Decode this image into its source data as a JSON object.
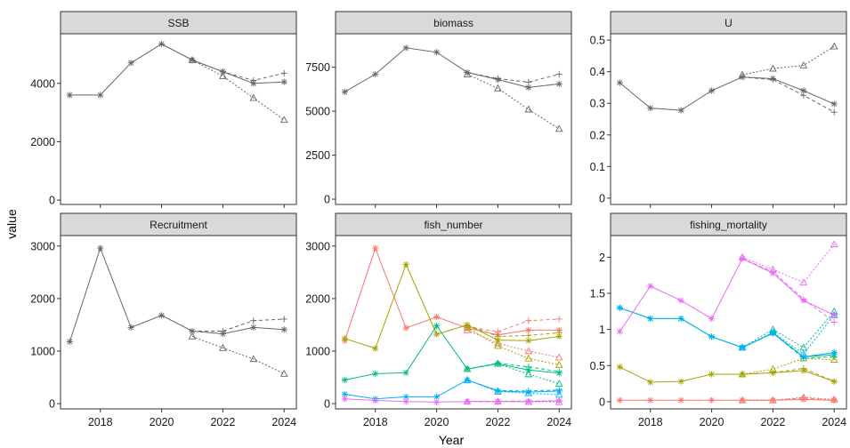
{
  "chart_data": {
    "type": "line",
    "xlabel": "Year",
    "ylabel": "value",
    "x_ticks": [
      2018,
      2020,
      2022,
      2024
    ],
    "xlim": [
      2016.7,
      2024.4
    ],
    "line_styles": [
      "solid",
      "dashed",
      "dotted"
    ],
    "markers": [
      "asterisk",
      "plus",
      "triangle"
    ],
    "panels": [
      {
        "title": "SSB",
        "ylim": [
          -150,
          5700
        ],
        "y_ticks": [
          0,
          2000,
          4000
        ],
        "colors": [
          "#666666"
        ],
        "groups": [
          {
            "variants": [
              {
                "x": [
                  2017,
                  2018,
                  2019,
                  2020,
                  2021,
                  2022,
                  2023,
                  2024
                ],
                "y": [
                  3600,
                  3600,
                  4700,
                  5350,
                  4800,
                  4400,
                  4000,
                  4050
                ]
              },
              {
                "x": [
                  2021,
                  2022,
                  2023,
                  2024
                ],
                "y": [
                  4800,
                  4400,
                  4100,
                  4350
                ]
              },
              {
                "x": [
                  2021,
                  2022,
                  2023,
                  2024
                ],
                "y": [
                  4800,
                  4250,
                  3500,
                  2750
                ]
              }
            ]
          }
        ]
      },
      {
        "title": "biomass",
        "ylim": [
          -300,
          9400
        ],
        "y_ticks": [
          0,
          2500,
          5000,
          7500
        ],
        "colors": [
          "#666666"
        ],
        "groups": [
          {
            "variants": [
              {
                "x": [
                  2017,
                  2018,
                  2019,
                  2020,
                  2021,
                  2022,
                  2023,
                  2024
                ],
                "y": [
                  6100,
                  7100,
                  8600,
                  8350,
                  7200,
                  6800,
                  6350,
                  6550
                ]
              },
              {
                "x": [
                  2021,
                  2022,
                  2023,
                  2024
                ],
                "y": [
                  7200,
                  6850,
                  6650,
                  7100
                ]
              },
              {
                "x": [
                  2021,
                  2022,
                  2023,
                  2024
                ],
                "y": [
                  7100,
                  6300,
                  5100,
                  4000
                ]
              }
            ]
          }
        ]
      },
      {
        "title": "U",
        "ylim": [
          -0.02,
          0.52
        ],
        "y_ticks": [
          0.0,
          0.1,
          0.2,
          0.3,
          0.4,
          0.5
        ],
        "colors": [
          "#666666"
        ],
        "groups": [
          {
            "variants": [
              {
                "x": [
                  2017,
                  2018,
                  2019,
                  2020,
                  2021,
                  2022,
                  2023,
                  2024
                ],
                "y": [
                  0.365,
                  0.285,
                  0.278,
                  0.34,
                  0.383,
                  0.378,
                  0.34,
                  0.298
                ]
              },
              {
                "x": [
                  2021,
                  2022,
                  2023,
                  2024
                ],
                "y": [
                  0.383,
                  0.375,
                  0.325,
                  0.272
                ]
              },
              {
                "x": [
                  2021,
                  2022,
                  2023,
                  2024
                ],
                "y": [
                  0.39,
                  0.41,
                  0.42,
                  0.48
                ]
              }
            ]
          }
        ]
      },
      {
        "title": "Recruitment",
        "ylim": [
          -100,
          3200
        ],
        "y_ticks": [
          0,
          1000,
          2000,
          3000
        ],
        "colors": [
          "#666666"
        ],
        "groups": [
          {
            "variants": [
              {
                "x": [
                  2017,
                  2018,
                  2019,
                  2020,
                  2021,
                  2022,
                  2023,
                  2024
                ],
                "y": [
                  1180,
                  2960,
                  1450,
                  1680,
                  1380,
                  1330,
                  1450,
                  1410
                ]
              },
              {
                "x": [
                  2021,
                  2022,
                  2023,
                  2024
                ],
                "y": [
                  1380,
                  1380,
                  1580,
                  1610
                ]
              },
              {
                "x": [
                  2021,
                  2022,
                  2023,
                  2024
                ],
                "y": [
                  1280,
                  1060,
                  850,
                  570
                ]
              }
            ]
          }
        ]
      },
      {
        "title": "fish_number",
        "ylim": [
          -100,
          3200
        ],
        "y_ticks": [
          0,
          1000,
          2000,
          3000
        ],
        "colors": [
          "#f8766d",
          "#a3a500",
          "#00bf7d",
          "#00b0f6",
          "#e76bf3"
        ],
        "groups": [
          {
            "variants": [
              {
                "x": [
                  2017,
                  2018,
                  2019,
                  2020,
                  2021,
                  2022,
                  2023,
                  2024
                ],
                "y": [
                  1200,
                  2960,
                  1440,
                  1650,
                  1440,
                  1310,
                  1400,
                  1400
                ]
              },
              {
                "x": [
                  2021,
                  2022,
                  2023,
                  2024
                ],
                "y": [
                  1460,
                  1370,
                  1580,
                  1610
                ]
              },
              {
                "x": [
                  2021,
                  2022,
                  2023,
                  2024
                ],
                "y": [
                  1400,
                  1150,
                  1000,
                  880
                ]
              }
            ]
          },
          {
            "variants": [
              {
                "x": [
                  2017,
                  2018,
                  2019,
                  2020,
                  2021,
                  2022,
                  2023,
                  2024
                ],
                "y": [
                  1240,
                  1050,
                  2650,
                  1320,
                  1500,
                  1210,
                  1200,
                  1280
                ]
              },
              {
                "x": [
                  2021,
                  2022,
                  2023,
                  2024
                ],
                "y": [
                  1500,
                  1280,
                  1300,
                  1350
                ]
              },
              {
                "x": [
                  2021,
                  2022,
                  2023,
                  2024
                ],
                "y": [
                  1450,
                  1100,
                  860,
                  740
                ]
              }
            ]
          },
          {
            "variants": [
              {
                "x": [
                  2017,
                  2018,
                  2019,
                  2020,
                  2021,
                  2022,
                  2023,
                  2024
                ],
                "y": [
                  450,
                  570,
                  590,
                  1480,
                  660,
                  760,
                  640,
                  580
                ]
              },
              {
                "x": [
                  2021,
                  2022,
                  2023,
                  2024
                ],
                "y": [
                  660,
                  770,
                  700,
                  610
                ]
              },
              {
                "x": [
                  2021,
                  2022,
                  2023,
                  2024
                ],
                "y": [
                  660,
                  760,
                  560,
                  380
                ]
              }
            ]
          },
          {
            "variants": [
              {
                "x": [
                  2017,
                  2018,
                  2019,
                  2020,
                  2021,
                  2022,
                  2023,
                  2024
                ],
                "y": [
                  180,
                  90,
                  130,
                  130,
                  450,
                  240,
                  220,
                  240
                ]
              },
              {
                "x": [
                  2021,
                  2022,
                  2023,
                  2024
                ],
                "y": [
                  450,
                  250,
                  240,
                  260
                ]
              },
              {
                "x": [
                  2021,
                  2022,
                  2023,
                  2024
                ],
                "y": [
                  450,
                  230,
                  200,
                  170
                ]
              }
            ]
          },
          {
            "variants": [
              {
                "x": [
                  2017,
                  2018,
                  2019,
                  2020,
                  2021,
                  2022,
                  2023,
                  2024
                ],
                "y": [
                  90,
                  60,
                  40,
                  30,
                  40,
                  40,
                  40,
                  50
                ]
              },
              {
                "x": [
                  2021,
                  2022,
                  2023,
                  2024
                ],
                "y": [
                  40,
                  45,
                  50,
                  55
                ]
              },
              {
                "x": [
                  2021,
                  2022,
                  2023,
                  2024
                ],
                "y": [
                  40,
                  40,
                  35,
                  30
                ]
              }
            ]
          }
        ]
      },
      {
        "title": "fishing_mortality",
        "ylim": [
          -0.1,
          2.3
        ],
        "y_ticks": [
          0.0,
          0.5,
          1.0,
          1.5,
          2.0
        ],
        "colors": [
          "#f8766d",
          "#a3a500",
          "#00bf7d",
          "#00b0f6",
          "#e76bf3"
        ],
        "groups": [
          {
            "variants": [
              {
                "x": [
                  2017,
                  2018,
                  2019,
                  2020,
                  2021,
                  2022,
                  2023,
                  2024
                ],
                "y": [
                  0.02,
                  0.02,
                  0.02,
                  0.02,
                  0.02,
                  0.02,
                  0.03,
                  0.02
                ]
              },
              {
                "x": [
                  2021,
                  2022,
                  2023,
                  2024
                ],
                "y": [
                  0.02,
                  0.02,
                  0.05,
                  0.02
                ]
              },
              {
                "x": [
                  2021,
                  2022,
                  2023,
                  2024
                ],
                "y": [
                  0.02,
                  0.02,
                  0.06,
                  0.03
                ]
              }
            ]
          },
          {
            "variants": [
              {
                "x": [
                  2017,
                  2018,
                  2019,
                  2020,
                  2021,
                  2022,
                  2023,
                  2024
                ],
                "y": [
                  0.48,
                  0.27,
                  0.28,
                  0.38,
                  0.38,
                  0.4,
                  0.43,
                  0.28
                ]
              },
              {
                "x": [
                  2021,
                  2022,
                  2023,
                  2024
                ],
                "y": [
                  0.38,
                  0.4,
                  0.46,
                  0.28
                ]
              },
              {
                "x": [
                  2021,
                  2022,
                  2023,
                  2024
                ],
                "y": [
                  0.38,
                  0.45,
                  0.6,
                  0.58
                ]
              }
            ]
          },
          {
            "variants": [
              {
                "x": [
                  2017,
                  2018,
                  2019,
                  2020,
                  2021,
                  2022,
                  2023,
                  2024
                ],
                "y": [
                  1.3,
                  1.15,
                  1.15,
                  0.9,
                  0.75,
                  0.95,
                  0.62,
                  0.65
                ]
              },
              {
                "x": [
                  2021,
                  2022,
                  2023,
                  2024
                ],
                "y": [
                  0.75,
                  0.95,
                  0.6,
                  0.62
                ]
              },
              {
                "x": [
                  2021,
                  2022,
                  2023,
                  2024
                ],
                "y": [
                  0.75,
                  1.0,
                  0.75,
                  1.25
                ]
              }
            ]
          },
          {
            "variants": [
              {
                "x": [
                  2017,
                  2018,
                  2019,
                  2020,
                  2021,
                  2022,
                  2023,
                  2024
                ],
                "y": [
                  1.3,
                  1.15,
                  1.15,
                  0.9,
                  0.75,
                  0.95,
                  0.62,
                  0.68
                ]
              },
              {
                "x": [
                  2021,
                  2022,
                  2023,
                  2024
                ],
                "y": [
                  0.75,
                  0.95,
                  0.62,
                  0.68
                ]
              },
              {
                "x": [
                  2021,
                  2022,
                  2023,
                  2024
                ],
                "y": [
                  0.75,
                  0.96,
                  0.66,
                  1.2
                ]
              }
            ]
          },
          {
            "variants": [
              {
                "x": [
                  2017,
                  2018,
                  2019,
                  2020,
                  2021,
                  2022,
                  2023,
                  2024
                ],
                "y": [
                  0.97,
                  1.6,
                  1.4,
                  1.15,
                  1.98,
                  1.78,
                  1.4,
                  1.2
                ]
              },
              {
                "x": [
                  2021,
                  2022,
                  2023,
                  2024
                ],
                "y": [
                  1.98,
                  1.8,
                  1.42,
                  1.1
                ]
              },
              {
                "x": [
                  2021,
                  2022,
                  2023,
                  2024
                ],
                "y": [
                  2.0,
                  1.83,
                  1.65,
                  2.18
                ]
              }
            ]
          }
        ]
      }
    ]
  }
}
